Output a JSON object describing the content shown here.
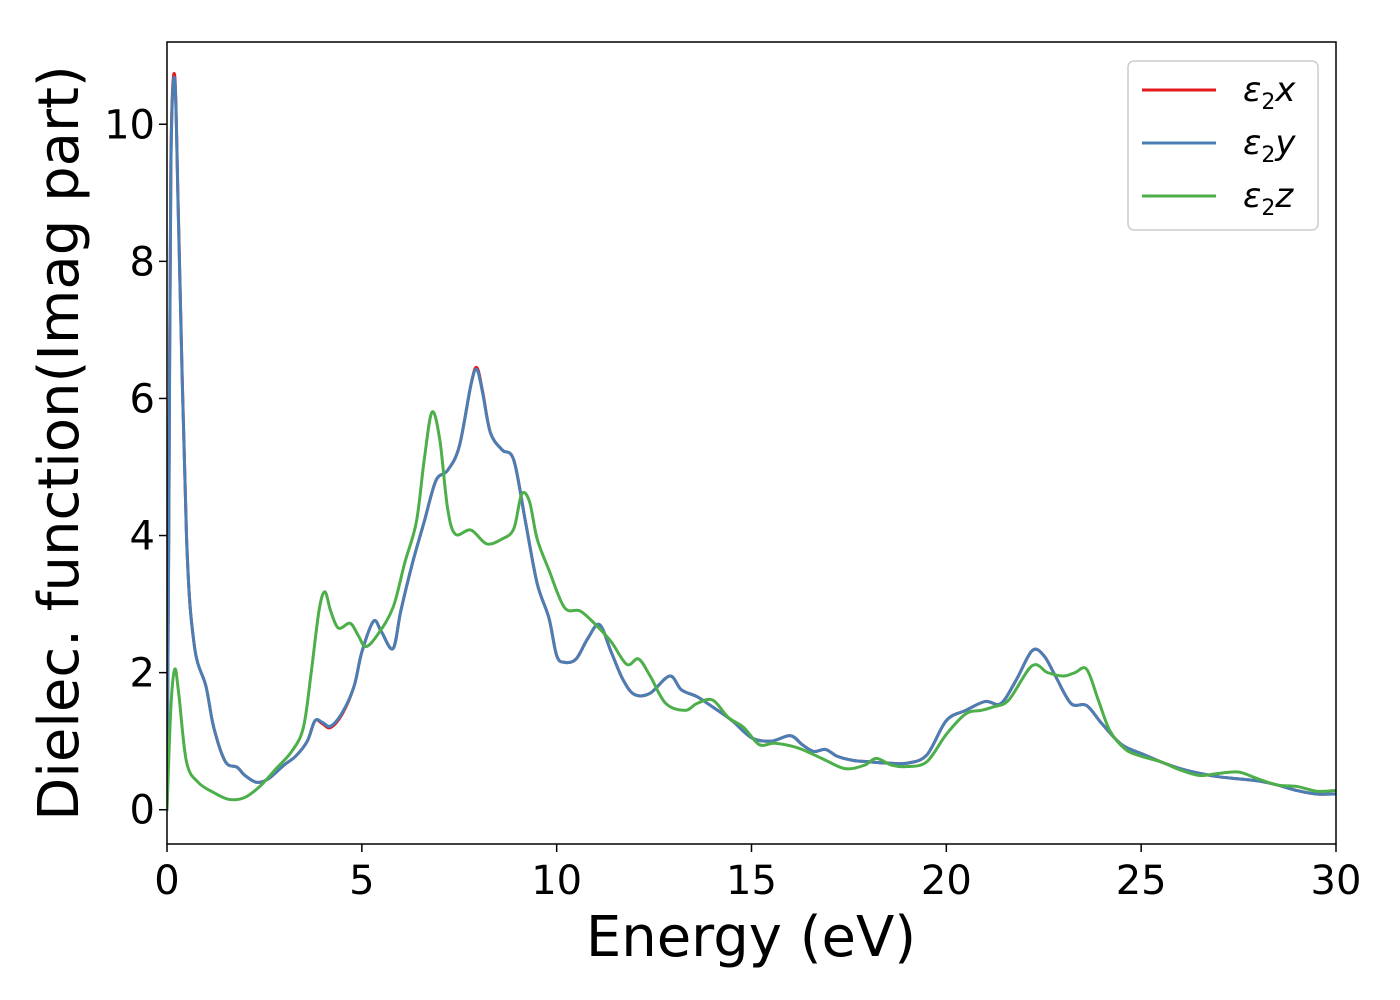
{
  "chart_data": {
    "type": "line",
    "xlabel": "Energy (eV)",
    "ylabel": "Dielec. function(Imag part)",
    "xlim": [
      0,
      30
    ],
    "ylim": [
      -0.5,
      11.2
    ],
    "xticks": [
      0,
      5,
      10,
      15,
      20,
      25,
      30
    ],
    "yticks": [
      0,
      2,
      4,
      6,
      8,
      10
    ],
    "grid": false,
    "legend_position": "top-right",
    "series": [
      {
        "name": "ε2x",
        "legend_main": "ε",
        "legend_sub": "2",
        "legend_tail": "x",
        "color": "#e41a1c",
        "points": [
          [
            0,
            0
          ],
          [
            0.05,
            4.5
          ],
          [
            0.1,
            9.5
          ],
          [
            0.2,
            10.7
          ],
          [
            0.3,
            8.5
          ],
          [
            0.5,
            4.0
          ],
          [
            0.7,
            2.4
          ],
          [
            1.0,
            1.8
          ],
          [
            1.2,
            1.2
          ],
          [
            1.5,
            0.7
          ],
          [
            1.8,
            0.62
          ],
          [
            2.0,
            0.5
          ],
          [
            2.3,
            0.4
          ],
          [
            2.6,
            0.45
          ],
          [
            3.0,
            0.65
          ],
          [
            3.3,
            0.78
          ],
          [
            3.6,
            1.0
          ],
          [
            3.8,
            1.3
          ],
          [
            4.0,
            1.25
          ],
          [
            4.2,
            1.2
          ],
          [
            4.5,
            1.4
          ],
          [
            4.8,
            1.8
          ],
          [
            5.0,
            2.3
          ],
          [
            5.3,
            2.75
          ],
          [
            5.5,
            2.6
          ],
          [
            5.8,
            2.35
          ],
          [
            6.0,
            2.9
          ],
          [
            6.3,
            3.6
          ],
          [
            6.6,
            4.2
          ],
          [
            6.9,
            4.8
          ],
          [
            7.2,
            4.95
          ],
          [
            7.5,
            5.3
          ],
          [
            7.8,
            6.2
          ],
          [
            7.95,
            6.45
          ],
          [
            8.1,
            6.1
          ],
          [
            8.3,
            5.5
          ],
          [
            8.6,
            5.25
          ],
          [
            8.9,
            5.1
          ],
          [
            9.2,
            4.2
          ],
          [
            9.5,
            3.3
          ],
          [
            9.8,
            2.8
          ],
          [
            10.0,
            2.25
          ],
          [
            10.2,
            2.15
          ],
          [
            10.5,
            2.2
          ],
          [
            10.8,
            2.5
          ],
          [
            11.1,
            2.7
          ],
          [
            11.4,
            2.3
          ],
          [
            11.7,
            1.9
          ],
          [
            12.0,
            1.68
          ],
          [
            12.4,
            1.7
          ],
          [
            12.9,
            1.95
          ],
          [
            13.2,
            1.75
          ],
          [
            13.6,
            1.65
          ],
          [
            14.0,
            1.5
          ],
          [
            14.5,
            1.3
          ],
          [
            15.0,
            1.05
          ],
          [
            15.5,
            1.0
          ],
          [
            16.0,
            1.08
          ],
          [
            16.3,
            0.95
          ],
          [
            16.6,
            0.85
          ],
          [
            16.9,
            0.88
          ],
          [
            17.2,
            0.78
          ],
          [
            17.6,
            0.72
          ],
          [
            18.0,
            0.7
          ],
          [
            18.5,
            0.68
          ],
          [
            19.0,
            0.68
          ],
          [
            19.5,
            0.8
          ],
          [
            20.0,
            1.3
          ],
          [
            20.5,
            1.45
          ],
          [
            21.0,
            1.58
          ],
          [
            21.4,
            1.55
          ],
          [
            21.8,
            1.9
          ],
          [
            22.2,
            2.32
          ],
          [
            22.5,
            2.25
          ],
          [
            22.8,
            1.95
          ],
          [
            23.2,
            1.55
          ],
          [
            23.6,
            1.52
          ],
          [
            24.0,
            1.25
          ],
          [
            24.5,
            0.95
          ],
          [
            25.0,
            0.82
          ],
          [
            25.5,
            0.7
          ],
          [
            26.0,
            0.6
          ],
          [
            26.5,
            0.53
          ],
          [
            27.0,
            0.48
          ],
          [
            27.5,
            0.45
          ],
          [
            28.0,
            0.42
          ],
          [
            28.5,
            0.36
          ],
          [
            29.0,
            0.28
          ],
          [
            29.5,
            0.23
          ],
          [
            30.0,
            0.23
          ]
        ]
      },
      {
        "name": "ε2y",
        "legend_main": "ε",
        "legend_sub": "2",
        "legend_tail": "y",
        "color": "#4a7fb5",
        "points": [
          [
            0,
            0
          ],
          [
            0.05,
            4.4
          ],
          [
            0.1,
            9.4
          ],
          [
            0.2,
            10.65
          ],
          [
            0.3,
            8.45
          ],
          [
            0.5,
            4.0
          ],
          [
            0.7,
            2.4
          ],
          [
            1.0,
            1.8
          ],
          [
            1.2,
            1.2
          ],
          [
            1.5,
            0.7
          ],
          [
            1.8,
            0.62
          ],
          [
            2.0,
            0.5
          ],
          [
            2.3,
            0.4
          ],
          [
            2.6,
            0.45
          ],
          [
            3.0,
            0.65
          ],
          [
            3.3,
            0.78
          ],
          [
            3.6,
            1.0
          ],
          [
            3.8,
            1.3
          ],
          [
            4.0,
            1.27
          ],
          [
            4.2,
            1.22
          ],
          [
            4.5,
            1.42
          ],
          [
            4.8,
            1.8
          ],
          [
            5.0,
            2.3
          ],
          [
            5.3,
            2.75
          ],
          [
            5.5,
            2.6
          ],
          [
            5.8,
            2.35
          ],
          [
            6.0,
            2.9
          ],
          [
            6.3,
            3.6
          ],
          [
            6.6,
            4.2
          ],
          [
            6.9,
            4.8
          ],
          [
            7.2,
            4.95
          ],
          [
            7.5,
            5.3
          ],
          [
            7.8,
            6.2
          ],
          [
            7.95,
            6.42
          ],
          [
            8.1,
            6.08
          ],
          [
            8.3,
            5.5
          ],
          [
            8.6,
            5.25
          ],
          [
            8.9,
            5.1
          ],
          [
            9.2,
            4.2
          ],
          [
            9.5,
            3.3
          ],
          [
            9.8,
            2.8
          ],
          [
            10.0,
            2.25
          ],
          [
            10.2,
            2.15
          ],
          [
            10.5,
            2.2
          ],
          [
            10.8,
            2.5
          ],
          [
            11.1,
            2.7
          ],
          [
            11.4,
            2.3
          ],
          [
            11.7,
            1.9
          ],
          [
            12.0,
            1.68
          ],
          [
            12.4,
            1.7
          ],
          [
            12.9,
            1.95
          ],
          [
            13.2,
            1.75
          ],
          [
            13.6,
            1.65
          ],
          [
            14.0,
            1.5
          ],
          [
            14.5,
            1.3
          ],
          [
            15.0,
            1.05
          ],
          [
            15.5,
            1.0
          ],
          [
            16.0,
            1.08
          ],
          [
            16.3,
            0.95
          ],
          [
            16.6,
            0.85
          ],
          [
            16.9,
            0.88
          ],
          [
            17.2,
            0.78
          ],
          [
            17.6,
            0.72
          ],
          [
            18.0,
            0.7
          ],
          [
            18.5,
            0.68
          ],
          [
            19.0,
            0.68
          ],
          [
            19.5,
            0.8
          ],
          [
            20.0,
            1.3
          ],
          [
            20.5,
            1.45
          ],
          [
            21.0,
            1.58
          ],
          [
            21.4,
            1.55
          ],
          [
            21.8,
            1.9
          ],
          [
            22.2,
            2.32
          ],
          [
            22.5,
            2.25
          ],
          [
            22.8,
            1.95
          ],
          [
            23.2,
            1.55
          ],
          [
            23.6,
            1.52
          ],
          [
            24.0,
            1.25
          ],
          [
            24.5,
            0.95
          ],
          [
            25.0,
            0.82
          ],
          [
            25.5,
            0.7
          ],
          [
            26.0,
            0.6
          ],
          [
            26.5,
            0.53
          ],
          [
            27.0,
            0.48
          ],
          [
            27.5,
            0.45
          ],
          [
            28.0,
            0.42
          ],
          [
            28.5,
            0.36
          ],
          [
            29.0,
            0.28
          ],
          [
            29.5,
            0.23
          ],
          [
            30.0,
            0.23
          ]
        ]
      },
      {
        "name": "ε2z",
        "legend_main": "ε",
        "legend_sub": "2",
        "legend_tail": "z",
        "color": "#4daf4a",
        "points": [
          [
            0,
            0
          ],
          [
            0.1,
            1.5
          ],
          [
            0.2,
            2.05
          ],
          [
            0.3,
            1.7
          ],
          [
            0.5,
            0.7
          ],
          [
            0.8,
            0.4
          ],
          [
            1.2,
            0.25
          ],
          [
            1.6,
            0.15
          ],
          [
            2.0,
            0.18
          ],
          [
            2.4,
            0.35
          ],
          [
            2.8,
            0.6
          ],
          [
            3.2,
            0.85
          ],
          [
            3.5,
            1.2
          ],
          [
            3.7,
            2.0
          ],
          [
            3.9,
            2.9
          ],
          [
            4.05,
            3.18
          ],
          [
            4.2,
            2.9
          ],
          [
            4.4,
            2.65
          ],
          [
            4.7,
            2.72
          ],
          [
            4.9,
            2.55
          ],
          [
            5.1,
            2.38
          ],
          [
            5.4,
            2.55
          ],
          [
            5.8,
            2.95
          ],
          [
            6.1,
            3.6
          ],
          [
            6.4,
            4.2
          ],
          [
            6.6,
            5.1
          ],
          [
            6.8,
            5.8
          ],
          [
            7.0,
            5.4
          ],
          [
            7.2,
            4.4
          ],
          [
            7.4,
            4.02
          ],
          [
            7.8,
            4.08
          ],
          [
            8.2,
            3.88
          ],
          [
            8.6,
            3.95
          ],
          [
            8.9,
            4.1
          ],
          [
            9.1,
            4.6
          ],
          [
            9.3,
            4.5
          ],
          [
            9.5,
            3.95
          ],
          [
            9.8,
            3.5
          ],
          [
            10.2,
            2.95
          ],
          [
            10.6,
            2.9
          ],
          [
            11.0,
            2.7
          ],
          [
            11.4,
            2.45
          ],
          [
            11.8,
            2.12
          ],
          [
            12.1,
            2.2
          ],
          [
            12.4,
            1.95
          ],
          [
            12.8,
            1.55
          ],
          [
            13.3,
            1.45
          ],
          [
            13.6,
            1.55
          ],
          [
            14.0,
            1.6
          ],
          [
            14.4,
            1.35
          ],
          [
            14.8,
            1.2
          ],
          [
            15.2,
            0.95
          ],
          [
            15.6,
            0.97
          ],
          [
            16.2,
            0.9
          ],
          [
            16.8,
            0.75
          ],
          [
            17.4,
            0.6
          ],
          [
            17.9,
            0.65
          ],
          [
            18.2,
            0.75
          ],
          [
            18.6,
            0.65
          ],
          [
            19.0,
            0.63
          ],
          [
            19.5,
            0.7
          ],
          [
            20.0,
            1.1
          ],
          [
            20.5,
            1.4
          ],
          [
            20.9,
            1.45
          ],
          [
            21.2,
            1.5
          ],
          [
            21.6,
            1.6
          ],
          [
            22.2,
            2.1
          ],
          [
            22.6,
            2.0
          ],
          [
            23.0,
            1.95
          ],
          [
            23.3,
            2.0
          ],
          [
            23.6,
            2.05
          ],
          [
            23.9,
            1.6
          ],
          [
            24.2,
            1.15
          ],
          [
            24.6,
            0.88
          ],
          [
            25.0,
            0.78
          ],
          [
            25.5,
            0.7
          ],
          [
            26.0,
            0.58
          ],
          [
            26.5,
            0.5
          ],
          [
            27.0,
            0.53
          ],
          [
            27.5,
            0.55
          ],
          [
            28.0,
            0.45
          ],
          [
            28.5,
            0.36
          ],
          [
            29.0,
            0.34
          ],
          [
            29.5,
            0.27
          ],
          [
            30.0,
            0.28
          ]
        ]
      }
    ]
  }
}
